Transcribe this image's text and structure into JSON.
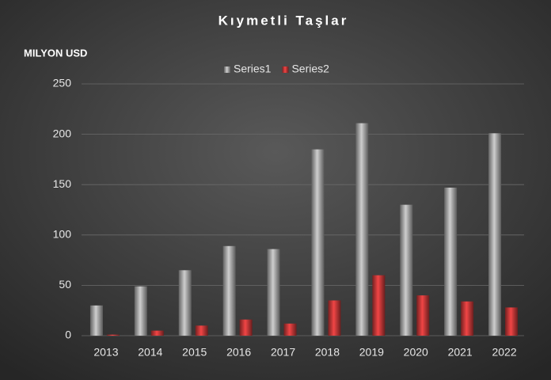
{
  "chart_data": {
    "type": "bar",
    "title": "Kıymetli Taşlar",
    "ylabel": "MILYON USD",
    "categories": [
      "2013",
      "2014",
      "2015",
      "2016",
      "2017",
      "2018",
      "2019",
      "2020",
      "2021",
      "2022"
    ],
    "series": [
      {
        "name": "Series1",
        "color": "#b3b3b3",
        "values": [
          30,
          49,
          65,
          89,
          86,
          185,
          211,
          130,
          147,
          201
        ]
      },
      {
        "name": "Series2",
        "color": "#d23c3c",
        "values": [
          1,
          5,
          10,
          16,
          12,
          35,
          60,
          40,
          34,
          28
        ]
      }
    ],
    "ylim": [
      0,
      250
    ],
    "yticks": [
      0,
      50,
      100,
      150,
      200,
      250
    ],
    "grid": true,
    "legend": "top"
  }
}
